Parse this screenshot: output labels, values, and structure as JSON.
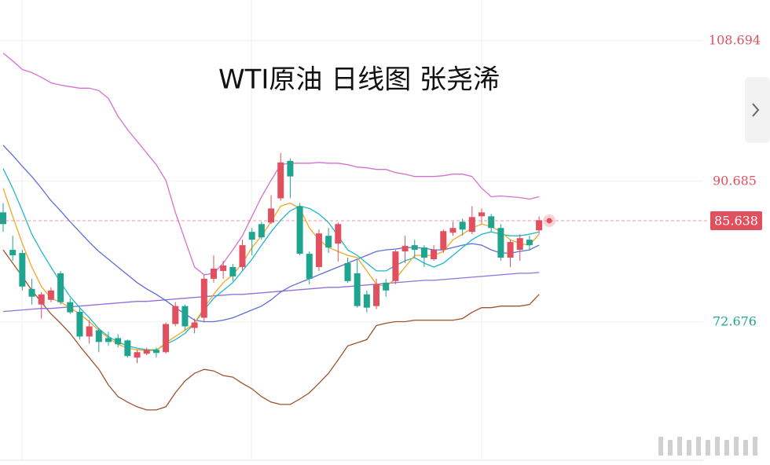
{
  "chart_data": {
    "type": "candlestick",
    "title": "WTI原油 日线图 张尧浠",
    "up_color": "#e0505e",
    "down_color": "#1fa58f",
    "ylim": [
      55.05,
      113.9
    ],
    "yticks": [
      108.694,
      90.685,
      72.676
    ],
    "last_price": 85.638,
    "grid": true,
    "open": [
      86.7,
      81.9,
      81.5,
      76.9,
      74.9,
      75.5,
      78.9,
      75.2,
      73.96,
      70.8,
      71.6,
      70.6,
      70.6,
      70.3,
      68.1,
      68.6,
      69.1,
      68.8,
      72.4,
      74.7,
      71.9,
      73.2,
      78.2,
      79.2,
      79.7,
      79.7,
      84.2,
      85.2,
      85.4,
      88.5,
      93.3,
      87.5,
      81.4,
      79.7,
      83.7,
      82.7,
      80.2,
      78.9,
      76.2,
      74.7,
      77.7,
      77.9,
      81.7,
      82.5,
      82.2,
      80.7,
      81.9,
      84.1,
      85.5,
      84.2,
      86.2,
      86.2,
      84.7,
      80.9,
      81.9,
      83.2,
      84.4
    ],
    "high": [
      87.9,
      83.7,
      81.9,
      78.2,
      76.5,
      77.1,
      79.2,
      75.7,
      74.4,
      72.9,
      71.8,
      71.4,
      71.1,
      70.4,
      69.1,
      69.4,
      69.4,
      72.6,
      75.2,
      74.9,
      73.1,
      78.7,
      81.2,
      80.5,
      80.1,
      83.2,
      84.7,
      85.5,
      88.9,
      94.3,
      93.6,
      87.9,
      81.7,
      84.5,
      84.7,
      85.4,
      80.9,
      80.7,
      76.7,
      78.2,
      78.2,
      81.9,
      83.7,
      83.2,
      82.5,
      82.5,
      84.5,
      85.5,
      85.9,
      87.5,
      87.2,
      86.5,
      85.2,
      83.2,
      83.9,
      83.7,
      86.2
    ],
    "low": [
      84.2,
      80.5,
      76.7,
      74.9,
      73.1,
      75.2,
      74.9,
      73.7,
      70.4,
      69.9,
      68.8,
      69.6,
      69.4,
      68.1,
      67.4,
      68.4,
      68.1,
      68.6,
      72.1,
      71.6,
      71.2,
      72.6,
      77.7,
      78.2,
      77.9,
      79.2,
      81.2,
      83.2,
      85.2,
      88.2,
      88.5,
      81.2,
      77.5,
      79.2,
      81.5,
      80.4,
      77.7,
      74.5,
      73.9,
      74.3,
      75.9,
      77.5,
      80.2,
      80.9,
      79.7,
      80.5,
      81.5,
      83.7,
      83.7,
      83.9,
      85.2,
      84.2,
      80.5,
      79.7,
      80.5,
      81.9,
      83.9
    ],
    "close": [
      85.2,
      81.2,
      77.2,
      75.9,
      76.2,
      76.7,
      75.2,
      73.9,
      70.8,
      72.1,
      70.1,
      70.1,
      69.8,
      68.3,
      68.8,
      69.1,
      68.7,
      72.4,
      74.7,
      72.1,
      72.6,
      78.2,
      79.5,
      79.9,
      78.5,
      82.5,
      83.2,
      83.5,
      87.2,
      93.1,
      91.3,
      81.4,
      78.2,
      84.0,
      82.2,
      85.2,
      77.9,
      74.7,
      74.5,
      77.5,
      76.7,
      81.7,
      82.4,
      81.9,
      80.9,
      81.9,
      84.3,
      84.7,
      84.5,
      86.1,
      86.7,
      84.7,
      80.9,
      82.9,
      83.4,
      82.5,
      85.7
    ],
    "lines": [
      {
        "color": "#d66fd0",
        "values": [
          107.1,
          106.1,
          105.0,
          104.6,
          104.0,
          103.3,
          103.0,
          102.8,
          102.6,
          102.6,
          102.3,
          101.3,
          99.0,
          97.3,
          95.8,
          94.3,
          92.8,
          90.8,
          86.7,
          83.2,
          79.7,
          78.7,
          78.9,
          80.2,
          81.9,
          83.7,
          86.2,
          88.7,
          90.8,
          92.8,
          93.0,
          93.0,
          93.0,
          93.1,
          93.0,
          93.0,
          92.8,
          92.5,
          92.4,
          92.2,
          92.2,
          91.8,
          91.6,
          91.3,
          91.3,
          91.3,
          91.4,
          91.6,
          91.6,
          91.3,
          89.8,
          88.7,
          88.8,
          88.7,
          88.6,
          88.4,
          88.7
        ]
      },
      {
        "color": "#a0522d",
        "values": [
          81.9,
          80.2,
          78.5,
          76.7,
          75.2,
          73.7,
          72.5,
          71.2,
          69.6,
          68.1,
          66.6,
          64.6,
          63.1,
          62.4,
          61.8,
          61.4,
          61.4,
          61.8,
          63.6,
          65.1,
          66.1,
          66.6,
          66.4,
          65.8,
          65.6,
          64.8,
          64.1,
          63.1,
          62.4,
          62.1,
          62.1,
          62.8,
          63.6,
          64.8,
          66.1,
          67.8,
          69.6,
          70.0,
          70.4,
          72.2,
          72.5,
          72.7,
          72.7,
          72.9,
          72.9,
          72.9,
          72.9,
          72.9,
          73.1,
          73.9,
          74.5,
          74.5,
          74.7,
          74.7,
          74.7,
          74.9,
          76.2
        ]
      },
      {
        "color": "#9370db",
        "values": [
          74.0,
          74.1,
          74.2,
          74.3,
          74.4,
          74.4,
          74.5,
          74.6,
          74.7,
          74.8,
          74.9,
          75.0,
          75.1,
          75.2,
          75.3,
          75.3,
          75.4,
          75.5,
          75.6,
          75.7,
          75.8,
          75.9,
          76.0,
          76.1,
          76.2,
          76.2,
          76.3,
          76.4,
          76.5,
          76.6,
          76.7,
          76.8,
          76.9,
          77.0,
          77.1,
          77.1,
          77.2,
          77.3,
          77.4,
          77.5,
          77.6,
          77.7,
          77.8,
          77.9,
          78.0,
          78.0,
          78.1,
          78.2,
          78.3,
          78.4,
          78.5,
          78.6,
          78.7,
          78.8,
          78.9,
          78.9,
          79.0
        ]
      },
      {
        "color": "#5b6fd6",
        "values": [
          95.3,
          94.0,
          92.6,
          91.3,
          89.8,
          88.2,
          86.9,
          85.5,
          84.2,
          82.9,
          81.7,
          80.7,
          79.7,
          78.7,
          77.7,
          76.9,
          76.2,
          75.4,
          74.5,
          73.7,
          72.9,
          72.7,
          72.7,
          72.9,
          73.2,
          73.7,
          74.2,
          74.7,
          75.5,
          76.5,
          77.2,
          77.7,
          78.2,
          78.7,
          79.2,
          79.7,
          80.2,
          80.7,
          81.2,
          81.7,
          81.9,
          82.0,
          82.2,
          82.2,
          82.1,
          81.9,
          81.9,
          82.2,
          82.5,
          82.7,
          82.5,
          81.9,
          81.5,
          81.5,
          81.7,
          81.9,
          82.5
        ]
      },
      {
        "color": "#20b8cc",
        "values": [
          92.3,
          89.8,
          86.9,
          83.9,
          81.7,
          79.7,
          77.7,
          75.9,
          74.5,
          73.2,
          71.8,
          70.8,
          70.1,
          69.6,
          69.3,
          69.1,
          69.1,
          69.8,
          70.4,
          71.2,
          72.5,
          74.2,
          75.7,
          76.7,
          77.7,
          79.2,
          80.7,
          82.5,
          84.2,
          85.7,
          86.9,
          87.5,
          87.2,
          86.5,
          85.4,
          83.7,
          81.9,
          81.2,
          80.2,
          79.2,
          79.2,
          79.9,
          80.5,
          80.9,
          80.2,
          79.7,
          80.2,
          81.2,
          82.2,
          83.2,
          83.9,
          84.2,
          83.9,
          83.7,
          83.7,
          83.9,
          84.2
        ]
      },
      {
        "color": "#f5a623",
        "values": [
          89.8,
          86.2,
          82.7,
          79.7,
          77.2,
          75.7,
          75.2,
          74.5,
          73.7,
          72.7,
          71.6,
          70.6,
          69.8,
          69.3,
          69.1,
          69.0,
          69.0,
          70.0,
          70.8,
          71.6,
          72.5,
          74.5,
          76.2,
          77.7,
          78.7,
          80.2,
          82.2,
          83.7,
          85.5,
          87.5,
          87.9,
          87.2,
          84.7,
          83.2,
          82.2,
          81.7,
          81.2,
          80.9,
          79.2,
          77.5,
          77.2,
          78.2,
          79.7,
          81.2,
          81.2,
          81.2,
          81.7,
          83.2,
          83.9,
          84.7,
          85.2,
          84.9,
          84.2,
          83.2,
          82.7,
          82.5,
          83.9
        ]
      }
    ]
  }
}
